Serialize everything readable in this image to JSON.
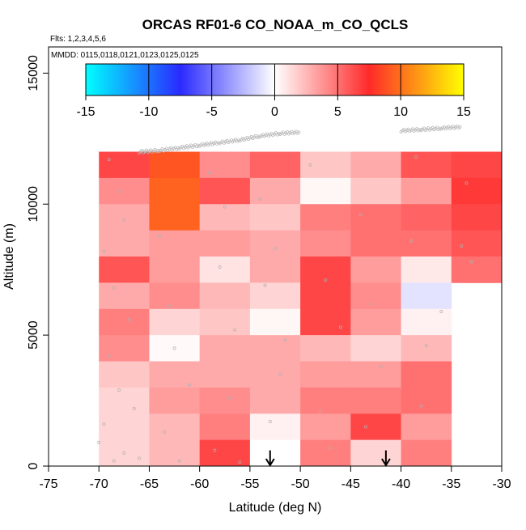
{
  "chart_data": {
    "type": "heatmap",
    "title": "ORCAS RF01-6 CO_NOAA_m_CO_QCLS",
    "flights_note": "Flts: 1,2,3,4,5,6",
    "dates_note": "MMDD: 0115,0118,0121,0123,0125,0125",
    "xlabel": "Latitude (deg N)",
    "ylabel": "Altitude (m)",
    "xlim": [
      -75,
      -30
    ],
    "ylim": [
      0,
      16000
    ],
    "x_ticks": [
      "-75",
      "-70",
      "-65",
      "-60",
      "-55",
      "-50",
      "-45",
      "-40",
      "-35",
      "-30"
    ],
    "y_ticks": [
      "0",
      "5000",
      "10000",
      "15000"
    ],
    "colorbar": {
      "range": [
        -15,
        15
      ],
      "ticks": [
        "-15",
        "-10",
        "-5",
        "0",
        "5",
        "10",
        "15"
      ],
      "colors": [
        "#00ffff",
        "#2a2aff",
        "#ffffff",
        "#ff2a2a",
        "#ffff00"
      ]
    },
    "lat_bins": [
      -70,
      -65,
      -60,
      -55,
      -50,
      -45,
      -40,
      -35,
      -30
    ],
    "alt_bin_size": 1000,
    "alt_bins_top": 12000,
    "grid_rows_top_to_bottom": [
      [
        6.5,
        9.0,
        4.0,
        5.5,
        2.0,
        3.0,
        6.0,
        6.5
      ],
      [
        4.0,
        9.5,
        6.0,
        3.0,
        0.3,
        2.0,
        3.5,
        7.0
      ],
      [
        3.0,
        9.5,
        2.5,
        2.0,
        4.5,
        5.0,
        5.5,
        6.5
      ],
      [
        3.0,
        3.5,
        3.5,
        3.0,
        4.0,
        5.0,
        5.0,
        6.0
      ],
      [
        6.0,
        3.5,
        1.0,
        3.0,
        6.5,
        3.5,
        0.8,
        5.0
      ],
      [
        3.0,
        4.0,
        2.5,
        1.5,
        6.5,
        4.0,
        -1.0,
        null
      ],
      [
        4.5,
        1.5,
        2.0,
        0.3,
        6.5,
        3.5,
        0.5,
        null
      ],
      [
        4.0,
        0.2,
        3.0,
        3.0,
        2.5,
        1.5,
        2.5,
        null
      ],
      [
        2.0,
        3.0,
        3.0,
        3.0,
        3.5,
        3.5,
        5.0,
        null
      ],
      [
        1.5,
        3.5,
        4.0,
        3.0,
        4.5,
        4.5,
        5.0,
        null
      ],
      [
        1.5,
        2.5,
        4.5,
        0.5,
        3.5,
        6.5,
        3.5,
        null
      ],
      [
        1.5,
        2.5,
        6.5,
        0.0,
        4.5,
        1.5,
        4.5,
        null
      ]
    ],
    "arrows_lat": [
      -53,
      -41.5
    ],
    "flight_tracks": [
      {
        "lat": [
          -66,
          -64,
          -62,
          -60,
          -58,
          -56,
          -54,
          -52,
          -50
        ],
        "alt": [
          12000,
          12050,
          12150,
          12250,
          12350,
          12450,
          12600,
          12700,
          12750
        ]
      },
      {
        "lat": [
          -40,
          -38,
          -36,
          -34
        ],
        "alt": [
          12800,
          12850,
          12900,
          12950
        ]
      }
    ],
    "sample_points": [
      [
        -69.0,
        11700
      ],
      [
        -68.0,
        10500
      ],
      [
        -67.5,
        9400
      ],
      [
        -69.5,
        8200
      ],
      [
        -68.5,
        6800
      ],
      [
        -67.0,
        5600
      ],
      [
        -69.0,
        4200
      ],
      [
        -68.0,
        2900
      ],
      [
        -69.5,
        1600
      ],
      [
        -67.5,
        500
      ],
      [
        -66.0,
        300
      ],
      [
        -68.5,
        200
      ],
      [
        -70.0,
        900
      ],
      [
        -66.5,
        2200
      ],
      [
        -64.0,
        8800
      ],
      [
        -63.0,
        6100
      ],
      [
        -62.5,
        4500
      ],
      [
        -61.0,
        3100
      ],
      [
        -63.5,
        1300
      ],
      [
        -62.0,
        200
      ],
      [
        -59.0,
        11200
      ],
      [
        -57.5,
        9900
      ],
      [
        -58.0,
        7600
      ],
      [
        -56.5,
        5200
      ],
      [
        -57.0,
        2600
      ],
      [
        -58.5,
        600
      ],
      [
        -56.0,
        150
      ],
      [
        -54.0,
        10200
      ],
      [
        -52.5,
        8300
      ],
      [
        -53.5,
        6900
      ],
      [
        -51.5,
        4800
      ],
      [
        -52.0,
        3500
      ],
      [
        -53.0,
        1700
      ],
      [
        -49.0,
        11500
      ],
      [
        -47.5,
        7100
      ],
      [
        -46.0,
        5300
      ],
      [
        -48.0,
        2100
      ],
      [
        -47.0,
        700
      ],
      [
        -44.0,
        9600
      ],
      [
        -43.0,
        6200
      ],
      [
        -42.0,
        3800
      ],
      [
        -43.5,
        1500
      ],
      [
        -38.5,
        11800
      ],
      [
        -39.0,
        8600
      ],
      [
        -37.5,
        4600
      ],
      [
        -38.0,
        2300
      ],
      [
        -33.5,
        10800
      ],
      [
        -34.0,
        8400
      ],
      [
        -33.0,
        7800
      ],
      [
        -36.0,
        5900
      ]
    ]
  }
}
